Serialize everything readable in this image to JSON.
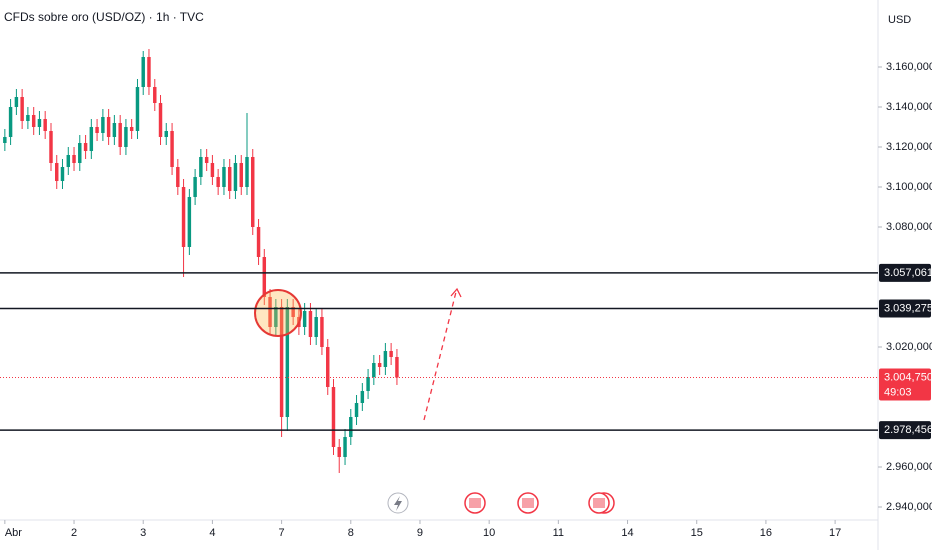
{
  "chart_data": {
    "type": "candlestick",
    "title": "CFDs sobre oro (USD/OZ) · 1h · TVC",
    "currency": "USD",
    "up_color": "#089981",
    "down_color": "#f23645",
    "xlim": [
      -0.07,
      12.62
    ],
    "xticks": [
      {
        "value": 0,
        "label": "Abr"
      },
      {
        "value": 1,
        "label": "2"
      },
      {
        "value": 2,
        "label": "3"
      },
      {
        "value": 3,
        "label": "4"
      },
      {
        "value": 4,
        "label": "7"
      },
      {
        "value": 5,
        "label": "8"
      },
      {
        "value": 6,
        "label": "9"
      },
      {
        "value": 7,
        "label": "10"
      },
      {
        "value": 8,
        "label": "11"
      },
      {
        "value": 9,
        "label": "14"
      },
      {
        "value": 10,
        "label": "15"
      },
      {
        "value": 11,
        "label": "16"
      },
      {
        "value": 12,
        "label": "17"
      }
    ],
    "ylim": [
      2933.5,
      3193.5
    ],
    "yticks": [
      {
        "value": 2940,
        "label": "2.940,000"
      },
      {
        "value": 2960,
        "label": "2.960,000"
      },
      {
        "value": 3020,
        "label": "3.020,000"
      },
      {
        "value": 3080,
        "label": "3.080,000"
      },
      {
        "value": 3100,
        "label": "3.100,000"
      },
      {
        "value": 3120,
        "label": "3.120,000"
      },
      {
        "value": 3140,
        "label": "3.140,000"
      },
      {
        "value": 3160,
        "label": "3.160,000"
      }
    ],
    "levels": [
      {
        "value": 3057.061,
        "label": "3.057,061"
      },
      {
        "value": 3039.275,
        "label": "3.039,275"
      },
      {
        "value": 2978.456,
        "label": "2.978,456"
      }
    ],
    "last_price": {
      "value": 3004.75,
      "label": "3.004,750"
    },
    "countdown": "49:03",
    "x": [
      0,
      0.083,
      0.167,
      0.25,
      0.333,
      0.417,
      0.5,
      0.583,
      0.667,
      0.75,
      0.833,
      0.917,
      1,
      1.083,
      1.167,
      1.25,
      1.333,
      1.417,
      1.5,
      1.583,
      1.667,
      1.75,
      1.833,
      1.917,
      2,
      2.083,
      2.167,
      2.25,
      2.333,
      2.417,
      2.5,
      2.583,
      2.667,
      2.75,
      2.833,
      2.917,
      3,
      3.083,
      3.167,
      3.25,
      3.333,
      3.417,
      3.5,
      3.583,
      3.667,
      3.75,
      3.833,
      3.917,
      4,
      4.083,
      4.167,
      4.25,
      4.333,
      4.417,
      4.5,
      4.583,
      4.667,
      4.75,
      4.833,
      4.917,
      5,
      5.083,
      5.167,
      5.25,
      5.333,
      5.417,
      5.5,
      5.583,
      5.667
    ],
    "open": [
      3122,
      3125,
      3140,
      3145,
      3133,
      3136,
      3130,
      3134,
      3128,
      3112,
      3103,
      3110,
      3116,
      3112,
      3122,
      3118,
      3130,
      3127,
      3135,
      3125,
      3132,
      3120,
      3130,
      3128,
      3150,
      3165,
      3150,
      3142,
      3125,
      3128,
      3110,
      3100,
      3070,
      3095,
      3105,
      3115,
      3112,
      3105,
      3100,
      3110,
      3098,
      3112,
      3100,
      3115,
      3080,
      3065,
      3045,
      3030,
      3040,
      2985,
      3040,
      3035,
      3030,
      3038,
      3025,
      3035,
      3020,
      3000,
      2970,
      2965,
      2975,
      2985,
      2992,
      2998,
      3005,
      3012,
      3010,
      3018,
      3015
    ],
    "high": [
      3129,
      3144,
      3149,
      3149,
      3140,
      3140,
      3138,
      3138,
      3132,
      3116,
      3114,
      3120,
      3120,
      3126,
      3126,
      3134,
      3134,
      3139,
      3139,
      3136,
      3136,
      3134,
      3134,
      3154,
      3168,
      3169,
      3154,
      3146,
      3132,
      3132,
      3114,
      3104,
      3099,
      3109,
      3119,
      3119,
      3116,
      3109,
      3114,
      3114,
      3116,
      3116,
      3137,
      3119,
      3084,
      3069,
      3049,
      3044,
      3044,
      3044,
      3044,
      3039,
      3042,
      3042,
      3039,
      3039,
      3024,
      3004,
      2974,
      2979,
      2989,
      2996,
      3002,
      3009,
      3016,
      3016,
      3022,
      3022,
      3019
    ],
    "low": [
      3118,
      3121,
      3136,
      3129,
      3129,
      3126,
      3126,
      3124,
      3108,
      3099,
      3099,
      3106,
      3108,
      3108,
      3114,
      3114,
      3123,
      3123,
      3121,
      3121,
      3116,
      3116,
      3124,
      3124,
      3146,
      3146,
      3138,
      3121,
      3121,
      3106,
      3096,
      3055,
      3066,
      3091,
      3101,
      3108,
      3101,
      3096,
      3096,
      3094,
      3094,
      3096,
      3096,
      3076,
      3061,
      3041,
      3026,
      3026,
      2975,
      2978,
      3031,
      3026,
      3026,
      3021,
      3021,
      3016,
      2996,
      2966,
      2957,
      2961,
      2971,
      2981,
      2988,
      2994,
      3001,
      3006,
      3006,
      3011,
      3001
    ],
    "close": [
      3125,
      3140,
      3145,
      3133,
      3136,
      3130,
      3134,
      3128,
      3112,
      3103,
      3110,
      3116,
      3112,
      3122,
      3118,
      3130,
      3127,
      3135,
      3125,
      3132,
      3120,
      3130,
      3128,
      3150,
      3165,
      3150,
      3142,
      3125,
      3128,
      3110,
      3100,
      3070,
      3095,
      3105,
      3115,
      3112,
      3105,
      3100,
      3110,
      3098,
      3112,
      3100,
      3115,
      3080,
      3065,
      3045,
      3030,
      3040,
      2985,
      3040,
      3035,
      3030,
      3038,
      3025,
      3035,
      3020,
      3000,
      2970,
      2965,
      2975,
      2985,
      2992,
      2998,
      3005,
      3012,
      3010,
      3018,
      3015,
      3004.75
    ]
  }
}
